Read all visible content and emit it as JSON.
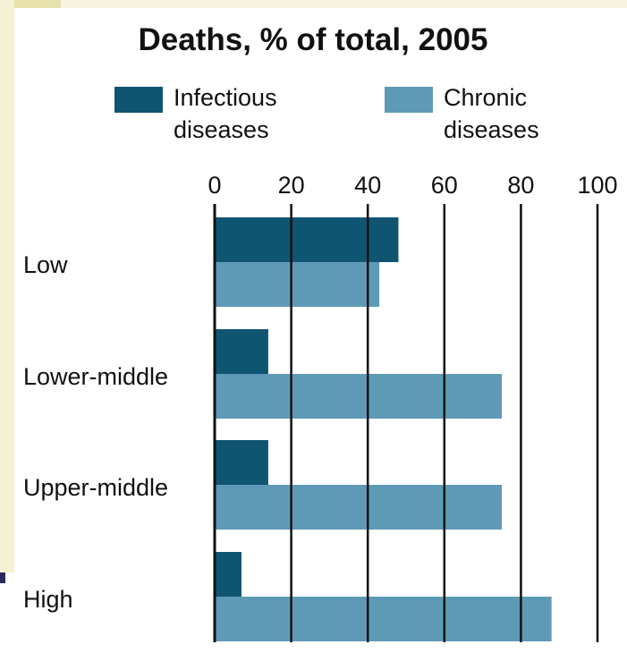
{
  "chart_data": {
    "type": "bar",
    "orientation": "horizontal",
    "title": "Deaths, % of total, 2005",
    "xlabel": "",
    "ylabel": "",
    "categories": [
      "Low",
      "Lower-middle",
      "Upper-middle",
      "High"
    ],
    "series": [
      {
        "name": "Infectious diseases",
        "legend_lines": [
          "Infectious",
          "diseases"
        ],
        "color": "#0f5572",
        "values": [
          48,
          14,
          14,
          7
        ]
      },
      {
        "name": "Chronic diseases",
        "legend_lines": [
          "Chronic",
          "diseases"
        ],
        "color": "#5e9ab6",
        "values": [
          43,
          75,
          75,
          88
        ]
      }
    ],
    "xlim": [
      0,
      100
    ],
    "xticks": [
      0,
      20,
      40,
      60,
      80,
      100
    ],
    "grid": true,
    "legend_position": "top"
  }
}
